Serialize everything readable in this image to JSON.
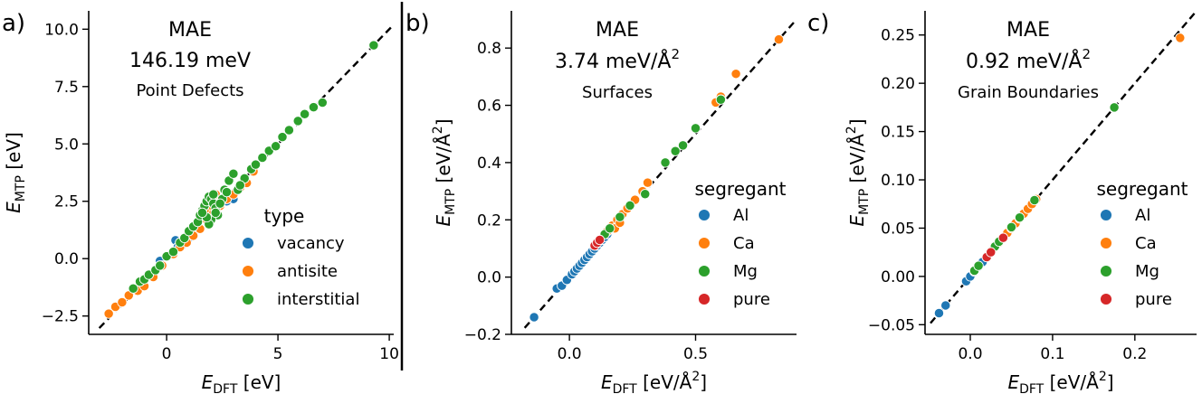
{
  "figure": {
    "panels": [
      {
        "letter": "a)",
        "mae_label": "MAE",
        "mae_value": "146.19 meV",
        "subtitle": "Point Defects",
        "xlabel_main": "E",
        "xlabel_sub": "DFT",
        "xlabel_unit": " [eV]",
        "ylabel_main": "E",
        "ylabel_sub": "MTP",
        "ylabel_unit": " [eV]",
        "legend_title": "type",
        "legend_entries": [
          "vacancy",
          "antisite",
          "interstitial"
        ]
      },
      {
        "letter": "b)",
        "mae_label": "MAE",
        "mae_value": "3.74 meV/Å",
        "mae_sup": "2",
        "subtitle": "Surfaces",
        "xlabel_main": "E",
        "xlabel_sub": "DFT",
        "xlabel_unit": " [eV/Å",
        "xlabel_sup": "2",
        "xlabel_end": "]",
        "ylabel_main": "E",
        "ylabel_sub": "MTP",
        "ylabel_unit": " [eV/Å",
        "ylabel_sup": "2",
        "ylabel_end": "]",
        "legend_title": "segregant",
        "legend_entries": [
          "Al",
          "Ca",
          "Mg",
          "pure"
        ]
      },
      {
        "letter": "c)",
        "mae_label": "MAE",
        "mae_value": "0.92 meV/Å",
        "mae_sup": "2",
        "subtitle": "Grain Boundaries",
        "xlabel_main": "E",
        "xlabel_sub": "DFT",
        "xlabel_unit": " [eV/Å",
        "xlabel_sup": "2",
        "xlabel_end": "]",
        "ylabel_main": "E",
        "ylabel_sub": "MTP",
        "ylabel_unit": " [eV/Å",
        "ylabel_sup": "2",
        "ylabel_end": "]",
        "legend_title": "segregant",
        "legend_entries": [
          "Al",
          "Ca",
          "Mg",
          "pure"
        ]
      }
    ]
  },
  "colors": {
    "blue": "#1f77b4",
    "orange": "#ff7f0e",
    "green": "#2ca02c",
    "red": "#d62728"
  },
  "chart_data": [
    {
      "type": "scatter",
      "title": "Point Defects",
      "xlabel": "E_DFT [eV]",
      "ylabel": "E_MTP [eV]",
      "xlim": [
        -3.5,
        10.2
      ],
      "ylim": [
        -3.3,
        10.8
      ],
      "xticks": [
        0,
        5,
        10
      ],
      "yticks": [
        -2.5,
        0.0,
        2.5,
        5.0,
        7.5,
        10.0
      ],
      "xtick_labels": [
        "0",
        "5",
        "10"
      ],
      "ytick_labels": [
        "−2.5",
        "0.0",
        "2.5",
        "5.0",
        "7.5",
        "10.0"
      ],
      "parity_line": true,
      "legend_title": "type",
      "legend_position": "lower-right",
      "series": [
        {
          "name": "vacancy",
          "color": "blue",
          "x": [
            0.4,
            0.5,
            0.7,
            1.0,
            1.3,
            1.6,
            2.4,
            2.7,
            3.0,
            -0.3
          ],
          "y": [
            0.8,
            0.5,
            0.6,
            0.9,
            1.4,
            1.8,
            2.3,
            2.5,
            2.6,
            -0.1
          ]
        },
        {
          "name": "antisite",
          "color": "orange",
          "x": [
            -2.6,
            -2.3,
            -2.0,
            -1.7,
            -1.3,
            -1.0,
            -0.6,
            -0.2,
            0.3,
            0.6,
            0.9,
            1.2,
            1.5,
            1.8,
            2.1,
            2.4,
            2.7,
            3.0,
            3.3,
            3.6,
            3.9,
            1.9,
            2.2,
            2.0,
            1.7
          ],
          "y": [
            -2.4,
            -2.1,
            -1.9,
            -1.6,
            -1.4,
            -1.2,
            -0.8,
            -0.3,
            0.2,
            0.5,
            0.7,
            1.0,
            1.3,
            1.7,
            2.0,
            2.3,
            2.6,
            2.8,
            3.1,
            3.3,
            3.8,
            2.6,
            2.8,
            2.3,
            2.1
          ]
        },
        {
          "name": "interstitial",
          "color": "green",
          "x": [
            -1.5,
            -1.2,
            -1.0,
            -0.8,
            -0.5,
            -0.3,
            0.0,
            0.3,
            0.6,
            0.8,
            1.0,
            1.2,
            1.4,
            1.5,
            1.6,
            1.7,
            1.8,
            1.9,
            2.0,
            2.1,
            2.2,
            2.3,
            2.5,
            2.0,
            1.9,
            1.8,
            2.2,
            2.4,
            2.6,
            2.8,
            3.0,
            3.2,
            3.5,
            3.8,
            4.0,
            4.3,
            4.6,
            4.9,
            5.2,
            5.5,
            5.9,
            6.2,
            6.6,
            7.0,
            9.3,
            2.1,
            1.6,
            2.7,
            3.3
          ],
          "y": [
            -1.3,
            -1.0,
            -0.9,
            -0.7,
            -0.5,
            -0.3,
            0.1,
            0.3,
            0.7,
            0.9,
            1.2,
            1.4,
            1.6,
            1.9,
            2.1,
            2.3,
            2.5,
            2.7,
            2.6,
            2.4,
            2.2,
            1.9,
            2.6,
            1.7,
            1.5,
            1.8,
            2.0,
            2.4,
            3.0,
            3.4,
            3.7,
            3.0,
            3.5,
            3.9,
            4.1,
            4.4,
            4.7,
            4.9,
            5.3,
            5.6,
            6.0,
            6.3,
            6.6,
            6.8,
            9.3,
            2.8,
            2.0,
            2.9,
            3.2
          ]
        }
      ]
    },
    {
      "type": "scatter",
      "title": "Surfaces",
      "xlabel": "E_DFT [eV/Å²]",
      "ylabel": "E_MTP [eV/Å²]",
      "xlim": [
        -0.23,
        0.9
      ],
      "ylim": [
        -0.2,
        0.93
      ],
      "xticks": [
        0.0,
        0.5
      ],
      "yticks": [
        -0.2,
        0.0,
        0.2,
        0.4,
        0.6,
        0.8
      ],
      "xtick_labels": [
        "0.0",
        "0.5"
      ],
      "ytick_labels": [
        "−0.2",
        "0.0",
        "0.2",
        "0.4",
        "0.6",
        "0.8"
      ],
      "parity_line": true,
      "legend_title": "segregant",
      "legend_position": "lower-right",
      "series": [
        {
          "name": "Al",
          "color": "blue",
          "x": [
            -0.14,
            -0.05,
            -0.03,
            -0.01,
            0.01,
            0.02,
            0.03,
            0.04,
            0.05,
            0.06,
            0.07,
            0.08,
            0.09,
            0.1,
            0.11,
            0.12,
            0.13,
            0.14,
            0.15
          ],
          "y": [
            -0.14,
            -0.04,
            -0.03,
            -0.01,
            0.01,
            0.02,
            0.03,
            0.04,
            0.05,
            0.06,
            0.07,
            0.08,
            0.09,
            0.1,
            0.11,
            0.12,
            0.13,
            0.14,
            0.15
          ]
        },
        {
          "name": "Ca",
          "color": "orange",
          "x": [
            0.15,
            0.17,
            0.19,
            0.21,
            0.23,
            0.26,
            0.29,
            0.31,
            0.58,
            0.6,
            0.66,
            0.83,
            0.18,
            0.2
          ],
          "y": [
            0.16,
            0.18,
            0.2,
            0.22,
            0.24,
            0.27,
            0.3,
            0.33,
            0.61,
            0.63,
            0.71,
            0.83,
            0.17,
            0.19
          ]
        },
        {
          "name": "Mg",
          "color": "green",
          "x": [
            0.14,
            0.16,
            0.2,
            0.24,
            0.3,
            0.38,
            0.42,
            0.45,
            0.5,
            0.6
          ],
          "y": [
            0.15,
            0.17,
            0.21,
            0.25,
            0.29,
            0.4,
            0.44,
            0.46,
            0.52,
            0.62
          ]
        },
        {
          "name": "pure",
          "color": "red",
          "x": [
            0.1,
            0.11,
            0.12
          ],
          "y": [
            0.11,
            0.12,
            0.13
          ]
        }
      ]
    },
    {
      "type": "scatter",
      "title": "Grain Boundaries",
      "xlabel": "E_DFT [eV/Å²]",
      "ylabel": "E_MTP [eV/Å²]",
      "xlim": [
        -0.055,
        0.275
      ],
      "ylim": [
        -0.06,
        0.275
      ],
      "xticks": [
        0.0,
        0.1,
        0.2
      ],
      "yticks": [
        -0.05,
        0.0,
        0.05,
        0.1,
        0.15,
        0.2,
        0.25
      ],
      "xtick_labels": [
        "0.0",
        "0.1",
        "0.2"
      ],
      "ytick_labels": [
        "−0.05",
        "0.00",
        "0.05",
        "0.10",
        "0.15",
        "0.20",
        "0.25"
      ],
      "parity_line": true,
      "legend_title": "segregant",
      "legend_position": "lower-right",
      "series": [
        {
          "name": "Al",
          "color": "blue",
          "x": [
            -0.038,
            -0.03,
            -0.005,
            0.0,
            0.005,
            0.01,
            0.015,
            0.02
          ],
          "y": [
            -0.038,
            -0.03,
            -0.005,
            0.0,
            0.005,
            0.01,
            0.015,
            0.02
          ]
        },
        {
          "name": "Ca",
          "color": "orange",
          "x": [
            0.03,
            0.035,
            0.04,
            0.045,
            0.05,
            0.055,
            0.06,
            0.065,
            0.07,
            0.075,
            0.08,
            0.255
          ],
          "y": [
            0.03,
            0.035,
            0.04,
            0.045,
            0.05,
            0.055,
            0.06,
            0.065,
            0.07,
            0.075,
            0.08,
            0.247
          ]
        },
        {
          "name": "Mg",
          "color": "green",
          "x": [
            0.005,
            0.01,
            0.02,
            0.025,
            0.03,
            0.035,
            0.05,
            0.06,
            0.078,
            0.175
          ],
          "y": [
            0.006,
            0.011,
            0.021,
            0.026,
            0.031,
            0.036,
            0.051,
            0.061,
            0.079,
            0.175
          ]
        },
        {
          "name": "pure",
          "color": "red",
          "x": [
            0.02,
            0.025,
            0.04
          ],
          "y": [
            0.02,
            0.025,
            0.04
          ]
        }
      ]
    }
  ]
}
